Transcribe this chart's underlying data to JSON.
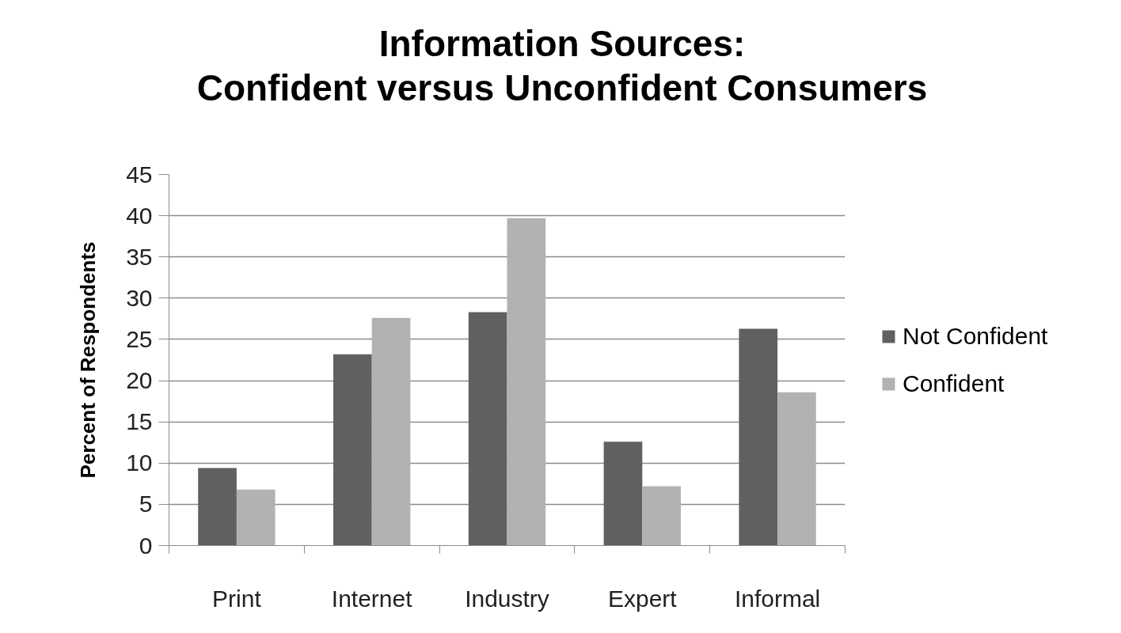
{
  "chart_data": {
    "type": "bar",
    "title": "Information Sources:\nConfident versus Unconfident Consumers",
    "ylabel": "Percent of Respondents",
    "categories": [
      "Print",
      "Internet",
      "Industry",
      "Expert",
      "Informal"
    ],
    "series": [
      {
        "name": "Not Confident",
        "color": "#606060",
        "values": [
          9.4,
          23.2,
          28.3,
          12.6,
          26.3
        ]
      },
      {
        "name": "Confident",
        "color": "#b2b2b2",
        "values": [
          6.8,
          27.6,
          39.7,
          7.2,
          18.6
        ]
      }
    ],
    "ylim": [
      0,
      45
    ],
    "yticks": [
      0,
      5,
      10,
      15,
      20,
      25,
      30,
      35,
      40,
      45
    ],
    "grid": "y",
    "legend": "right"
  }
}
